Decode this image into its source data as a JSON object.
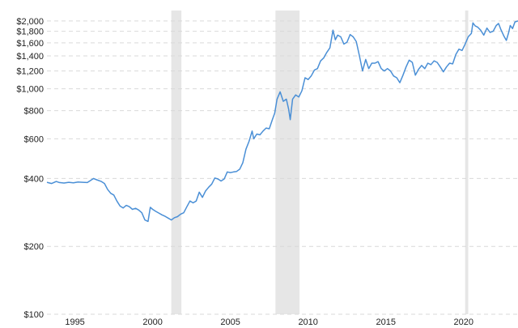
{
  "chart_data": {
    "type": "line",
    "title": "",
    "xlabel": "",
    "ylabel": "",
    "y_scale": "log",
    "grid": "horizontal dashed",
    "legend": "none",
    "xlim": [
      1993.2,
      2023.5
    ],
    "ylim": [
      100,
      2100
    ],
    "x_ticks": [
      {
        "value": 1995,
        "label": "1995"
      },
      {
        "value": 2000,
        "label": "2000"
      },
      {
        "value": 2005,
        "label": "2005"
      },
      {
        "value": 2010,
        "label": "2010"
      },
      {
        "value": 2015,
        "label": "2015"
      },
      {
        "value": 2020,
        "label": "2020"
      }
    ],
    "y_ticks": [
      {
        "value": 2000,
        "label": "$2,000"
      },
      {
        "value": 1800,
        "label": "$1,800"
      },
      {
        "value": 1600,
        "label": "$1,600"
      },
      {
        "value": 1400,
        "label": "$1,400"
      },
      {
        "value": 1200,
        "label": "$1,200"
      },
      {
        "value": 1000,
        "label": "$1,000"
      },
      {
        "value": 800,
        "label": "$800"
      },
      {
        "value": 600,
        "label": "$600"
      },
      {
        "value": 400,
        "label": "$400"
      },
      {
        "value": 200,
        "label": "$200"
      },
      {
        "value": 100,
        "label": "$100"
      }
    ],
    "shaded_periods": [
      {
        "start": 2001.2,
        "end": 2001.85
      },
      {
        "start": 2007.9,
        "end": 2009.45
      },
      {
        "start": 2020.1,
        "end": 2020.3
      }
    ],
    "colors": {
      "line": "#4a8fd6",
      "shade": "#e6e6e6",
      "grid": "#d9d9d9"
    },
    "series": [
      {
        "values": [
          [
            1993.2,
            385
          ],
          [
            1993.5,
            380
          ],
          [
            1993.8,
            388
          ],
          [
            1994.0,
            384
          ],
          [
            1994.3,
            382
          ],
          [
            1994.6,
            385
          ],
          [
            1994.9,
            383
          ],
          [
            1995.2,
            386
          ],
          [
            1995.5,
            385
          ],
          [
            1995.8,
            384
          ],
          [
            1996.0,
            392
          ],
          [
            1996.2,
            400
          ],
          [
            1996.4,
            395
          ],
          [
            1996.7,
            388
          ],
          [
            1996.9,
            380
          ],
          [
            1997.1,
            358
          ],
          [
            1997.3,
            344
          ],
          [
            1997.5,
            338
          ],
          [
            1997.7,
            318
          ],
          [
            1997.9,
            302
          ],
          [
            1998.1,
            296
          ],
          [
            1998.3,
            304
          ],
          [
            1998.5,
            300
          ],
          [
            1998.7,
            292
          ],
          [
            1998.9,
            295
          ],
          [
            1999.1,
            290
          ],
          [
            1999.3,
            282
          ],
          [
            1999.5,
            262
          ],
          [
            1999.7,
            258
          ],
          [
            1999.85,
            298
          ],
          [
            2000.0,
            292
          ],
          [
            2000.2,
            286
          ],
          [
            2000.4,
            281
          ],
          [
            2000.6,
            276
          ],
          [
            2000.8,
            272
          ],
          [
            2001.0,
            267
          ],
          [
            2001.2,
            262
          ],
          [
            2001.4,
            268
          ],
          [
            2001.6,
            271
          ],
          [
            2001.8,
            278
          ],
          [
            2002.0,
            282
          ],
          [
            2002.2,
            300
          ],
          [
            2002.4,
            318
          ],
          [
            2002.6,
            312
          ],
          [
            2002.8,
            318
          ],
          [
            2003.0,
            348
          ],
          [
            2003.2,
            330
          ],
          [
            2003.4,
            352
          ],
          [
            2003.6,
            366
          ],
          [
            2003.8,
            378
          ],
          [
            2004.0,
            402
          ],
          [
            2004.2,
            398
          ],
          [
            2004.4,
            390
          ],
          [
            2004.6,
            398
          ],
          [
            2004.8,
            428
          ],
          [
            2005.0,
            425
          ],
          [
            2005.2,
            428
          ],
          [
            2005.4,
            430
          ],
          [
            2005.6,
            440
          ],
          [
            2005.8,
            470
          ],
          [
            2006.0,
            540
          ],
          [
            2006.2,
            585
          ],
          [
            2006.4,
            650
          ],
          [
            2006.5,
            600
          ],
          [
            2006.7,
            630
          ],
          [
            2006.9,
            625
          ],
          [
            2007.1,
            650
          ],
          [
            2007.3,
            670
          ],
          [
            2007.5,
            665
          ],
          [
            2007.7,
            730
          ],
          [
            2007.85,
            780
          ],
          [
            2008.0,
            900
          ],
          [
            2008.2,
            970
          ],
          [
            2008.4,
            880
          ],
          [
            2008.6,
            900
          ],
          [
            2008.75,
            810
          ],
          [
            2008.85,
            730
          ],
          [
            2009.0,
            900
          ],
          [
            2009.2,
            940
          ],
          [
            2009.4,
            920
          ],
          [
            2009.6,
            980
          ],
          [
            2009.8,
            1120
          ],
          [
            2010.0,
            1100
          ],
          [
            2010.2,
            1140
          ],
          [
            2010.4,
            1210
          ],
          [
            2010.6,
            1230
          ],
          [
            2010.8,
            1330
          ],
          [
            2011.0,
            1370
          ],
          [
            2011.2,
            1450
          ],
          [
            2011.4,
            1520
          ],
          [
            2011.6,
            1820
          ],
          [
            2011.75,
            1650
          ],
          [
            2011.9,
            1730
          ],
          [
            2012.1,
            1700
          ],
          [
            2012.3,
            1580
          ],
          [
            2012.5,
            1610
          ],
          [
            2012.7,
            1740
          ],
          [
            2012.9,
            1700
          ],
          [
            2013.1,
            1620
          ],
          [
            2013.3,
            1400
          ],
          [
            2013.5,
            1200
          ],
          [
            2013.7,
            1350
          ],
          [
            2013.9,
            1230
          ],
          [
            2014.1,
            1300
          ],
          [
            2014.3,
            1300
          ],
          [
            2014.5,
            1320
          ],
          [
            2014.7,
            1230
          ],
          [
            2014.9,
            1200
          ],
          [
            2015.1,
            1230
          ],
          [
            2015.3,
            1200
          ],
          [
            2015.5,
            1140
          ],
          [
            2015.7,
            1120
          ],
          [
            2015.9,
            1065
          ],
          [
            2016.1,
            1150
          ],
          [
            2016.3,
            1250
          ],
          [
            2016.5,
            1340
          ],
          [
            2016.7,
            1310
          ],
          [
            2016.9,
            1150
          ],
          [
            2017.1,
            1220
          ],
          [
            2017.3,
            1270
          ],
          [
            2017.5,
            1230
          ],
          [
            2017.7,
            1300
          ],
          [
            2017.9,
            1280
          ],
          [
            2018.1,
            1330
          ],
          [
            2018.3,
            1310
          ],
          [
            2018.5,
            1250
          ],
          [
            2018.7,
            1190
          ],
          [
            2018.9,
            1250
          ],
          [
            2019.1,
            1300
          ],
          [
            2019.3,
            1290
          ],
          [
            2019.5,
            1420
          ],
          [
            2019.7,
            1500
          ],
          [
            2019.9,
            1480
          ],
          [
            2020.1,
            1580
          ],
          [
            2020.3,
            1700
          ],
          [
            2020.5,
            1760
          ],
          [
            2020.6,
            1960
          ],
          [
            2020.75,
            1900
          ],
          [
            2020.9,
            1880
          ],
          [
            2021.1,
            1820
          ],
          [
            2021.3,
            1730
          ],
          [
            2021.5,
            1860
          ],
          [
            2021.7,
            1780
          ],
          [
            2021.9,
            1800
          ],
          [
            2022.1,
            1910
          ],
          [
            2022.25,
            1950
          ],
          [
            2022.4,
            1830
          ],
          [
            2022.6,
            1710
          ],
          [
            2022.75,
            1640
          ],
          [
            2022.9,
            1780
          ],
          [
            2023.0,
            1910
          ],
          [
            2023.15,
            1850
          ],
          [
            2023.3,
            1980
          ],
          [
            2023.5,
            2000
          ]
        ]
      }
    ]
  }
}
